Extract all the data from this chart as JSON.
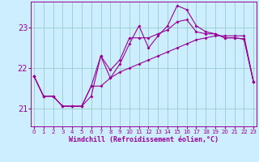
{
  "xlabel": "Windchill (Refroidissement éolien,°C)",
  "bg_color": "#cceeff",
  "line_color": "#990099",
  "grid_color": "#99cccc",
  "x_ticks": [
    0,
    1,
    2,
    3,
    4,
    5,
    6,
    7,
    8,
    9,
    10,
    11,
    12,
    13,
    14,
    15,
    16,
    17,
    18,
    19,
    20,
    21,
    22,
    23
  ],
  "y_ticks": [
    21,
    22,
    23
  ],
  "xlim": [
    -0.3,
    23.3
  ],
  "ylim": [
    20.55,
    23.65
  ],
  "line1_x": [
    0,
    1,
    2,
    3,
    4,
    5,
    6,
    7,
    8,
    9,
    10,
    11,
    12,
    13,
    14,
    15,
    16,
    17,
    18,
    19,
    20,
    21,
    22,
    23
  ],
  "line1_y": [
    21.8,
    21.3,
    21.3,
    21.05,
    21.05,
    21.05,
    21.55,
    21.55,
    21.75,
    21.9,
    22.0,
    22.1,
    22.2,
    22.3,
    22.4,
    22.5,
    22.6,
    22.7,
    22.75,
    22.8,
    22.8,
    22.8,
    22.8,
    21.65
  ],
  "line2_x": [
    0,
    1,
    2,
    3,
    4,
    5,
    6,
    7,
    8,
    9,
    10,
    11,
    12,
    13,
    14,
    15,
    16,
    17,
    18,
    19,
    20,
    21,
    22,
    23
  ],
  "line2_y": [
    21.8,
    21.3,
    21.3,
    21.05,
    21.05,
    21.05,
    21.55,
    22.3,
    21.75,
    22.1,
    22.6,
    23.05,
    22.5,
    22.8,
    23.05,
    23.55,
    23.45,
    23.05,
    22.9,
    22.85,
    22.75,
    22.75,
    22.72,
    21.65
  ],
  "line3_x": [
    0,
    1,
    2,
    3,
    4,
    5,
    6,
    7,
    8,
    9,
    10,
    11,
    12,
    13,
    14,
    15,
    16,
    17,
    18,
    19,
    20,
    21,
    22,
    23
  ],
  "line3_y": [
    21.8,
    21.3,
    21.3,
    21.05,
    21.05,
    21.05,
    21.3,
    22.3,
    21.95,
    22.2,
    22.75,
    22.75,
    22.75,
    22.85,
    22.95,
    23.15,
    23.2,
    22.9,
    22.85,
    22.85,
    22.75,
    22.75,
    22.72,
    21.65
  ]
}
